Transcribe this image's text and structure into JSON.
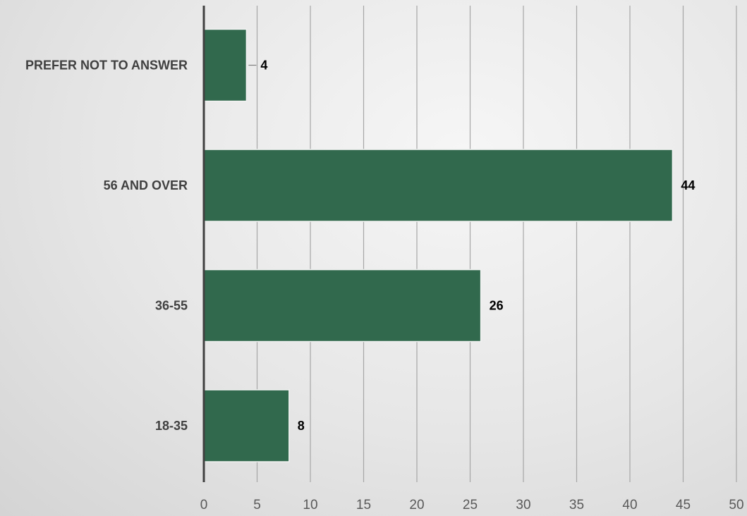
{
  "chart_data": {
    "type": "bar",
    "orientation": "horizontal",
    "categories": [
      "18-35",
      "36-55",
      "56 AND OVER",
      "PREFER NOT TO ANSWER"
    ],
    "values": [
      8,
      26,
      44,
      4
    ],
    "data_labels": [
      "8",
      "26",
      "44",
      "4"
    ],
    "title": "",
    "xlabel": "",
    "ylabel": "",
    "xlim": [
      0,
      50
    ],
    "xticks": [
      0,
      5,
      10,
      15,
      20,
      25,
      30,
      35,
      40,
      45,
      50
    ],
    "xtick_labels": [
      "0",
      "5",
      "10",
      "15",
      "20",
      "25",
      "30",
      "35",
      "40",
      "45",
      "50"
    ],
    "grid": true,
    "legend": "none",
    "bar_color": "#31694d",
    "gridline_color": "#a6a6a6",
    "axis_color": "#404040"
  }
}
